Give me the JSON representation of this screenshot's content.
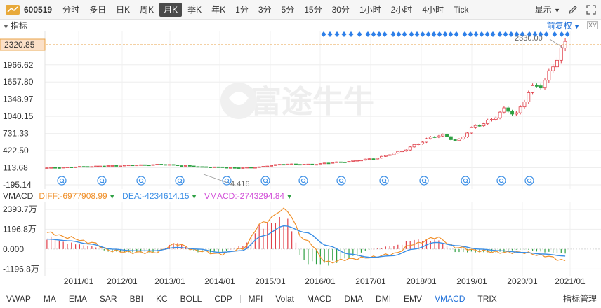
{
  "toolbar": {
    "symbol": "600519",
    "periods": [
      "分时",
      "多日",
      "日K",
      "周K",
      "月K",
      "季K",
      "年K",
      "1分",
      "3分",
      "5分",
      "15分",
      "30分",
      "1小时",
      "2小时",
      "4小时",
      "Tick"
    ],
    "active_period": "月K",
    "display_label": "显示"
  },
  "indicator_row": {
    "toggle_label": "指标",
    "adjust_label": "前复权",
    "xy_label": "XY"
  },
  "price_axis": {
    "current_price": "2320.85",
    "tick_labels": [
      "1966.62",
      "1657.80",
      "1348.97",
      "1040.15",
      "731.33",
      "422.50",
      "113.68",
      "-195.14"
    ],
    "high_label": "2330.00",
    "low_label": "4.416"
  },
  "watermark": "富途牛牛",
  "vmacd": {
    "label": "VMACD",
    "diff_text": "DIFF:-6977908.99",
    "dea_text": "DEA:-4234614.15",
    "vmacd_text": "VMACD:-2743294.84",
    "tick_labels": [
      "2393.7万",
      "1196.8万",
      "0.000",
      "-1196.8万"
    ]
  },
  "x_axis": {
    "labels": [
      "2011/01",
      "2012/01",
      "2013/01",
      "2014/01",
      "2015/01",
      "2016/01",
      "2017/01",
      "2018/01",
      "2019/01",
      "2020/01",
      "2021/01"
    ]
  },
  "bottom_tabs": {
    "items": [
      "VWAP",
      "MA",
      "EMA",
      "SAR",
      "BBI",
      "KC",
      "BOLL",
      "CDP",
      "MFI",
      "Volat",
      "MACD",
      "DMA",
      "DMI",
      "EMV",
      "VMACD",
      "TRIX"
    ],
    "active": "VMACD",
    "manage_label": "指标管理"
  },
  "colors": {
    "up": "#e0404a",
    "down": "#2ea043",
    "diff": "#f0902a",
    "dea": "#3a8ee6",
    "vmacd": "#d24fd8",
    "accent": "#1e6fd8",
    "diamond": "#2d7fe8"
  },
  "chart_data": [
    {
      "type": "candlestick",
      "title": "600519 月K",
      "x": [
        "2010/06",
        "2010/09",
        "2010/12",
        "2011/03",
        "2011/06",
        "2011/09",
        "2011/12",
        "2012/03",
        "2012/06",
        "2012/09",
        "2012/12",
        "2013/03",
        "2013/06",
        "2013/09",
        "2013/12",
        "2014/03",
        "2014/06",
        "2014/09",
        "2014/12",
        "2015/03",
        "2015/06",
        "2015/09",
        "2015/12",
        "2016/03",
        "2016/06",
        "2016/09",
        "2016/12",
        "2017/03",
        "2017/06",
        "2017/09",
        "2017/12",
        "2018/03",
        "2018/06",
        "2018/09",
        "2018/12",
        "2019/03",
        "2019/06",
        "2019/09",
        "2019/12",
        "2020/03",
        "2020/06",
        "2020/09",
        "2020/12",
        "2021/01"
      ],
      "close": [
        110,
        120,
        125,
        135,
        140,
        148,
        152,
        160,
        165,
        170,
        172,
        155,
        140,
        130,
        125,
        118,
        112,
        118,
        140,
        165,
        185,
        170,
        175,
        195,
        210,
        230,
        250,
        280,
        320,
        390,
        470,
        560,
        700,
        680,
        590,
        780,
        900,
        1010,
        1150,
        1100,
        1480,
        1620,
        1950,
        2320.85
      ],
      "ylim": [
        -195.14,
        2330.0
      ],
      "yticks": [
        -195.14,
        113.68,
        422.5,
        731.33,
        1040.15,
        1348.97,
        1657.8,
        1966.62
      ],
      "current_price": 2320.85,
      "high": 2330.0,
      "low": 4.416
    },
    {
      "type": "line",
      "title": "VMACD",
      "x": [
        "2010/06",
        "2010/12",
        "2011/06",
        "2011/12",
        "2012/06",
        "2012/12",
        "2013/06",
        "2013/12",
        "2014/06",
        "2014/12",
        "2015/03",
        "2015/06",
        "2015/09",
        "2015/12",
        "2016/06",
        "2016/12",
        "2017/06",
        "2017/12",
        "2018/06",
        "2018/12",
        "2019/06",
        "2019/12",
        "2020/06",
        "2020/12",
        "2021/01"
      ],
      "series": [
        {
          "name": "DIFF",
          "values": [
            1.0,
            0.7,
            0.4,
            -0.1,
            -0.2,
            -0.2,
            0.3,
            -0.1,
            -0.3,
            0.0,
            1.6,
            2.39,
            0.5,
            -0.8,
            -0.6,
            -0.5,
            -0.3,
            0.3,
            0.7,
            0.1,
            -0.1,
            -0.2,
            -0.2,
            -0.4,
            -0.7
          ]
        },
        {
          "name": "DEA",
          "values": [
            0.6,
            0.5,
            0.3,
            0.0,
            -0.1,
            -0.1,
            0.1,
            0.0,
            -0.2,
            -0.1,
            0.8,
            1.4,
            1.0,
            0.2,
            -0.3,
            -0.5,
            -0.4,
            0.0,
            0.4,
            0.2,
            0.0,
            -0.1,
            -0.2,
            -0.3,
            -0.42
          ]
        },
        {
          "name": "VMACD",
          "values": [
            0.8,
            0.4,
            0.2,
            -0.2,
            -0.2,
            -0.2,
            0.4,
            -0.2,
            -0.2,
            0.2,
            1.6,
            2.0,
            -0.9,
            -1.0,
            -0.6,
            0.0,
            0.2,
            0.6,
            0.6,
            -0.2,
            -0.2,
            -0.2,
            0.0,
            -0.2,
            -0.27
          ]
        }
      ],
      "ylim": [
        -1.35,
        2.6
      ],
      "ylabel": "万"
    }
  ]
}
